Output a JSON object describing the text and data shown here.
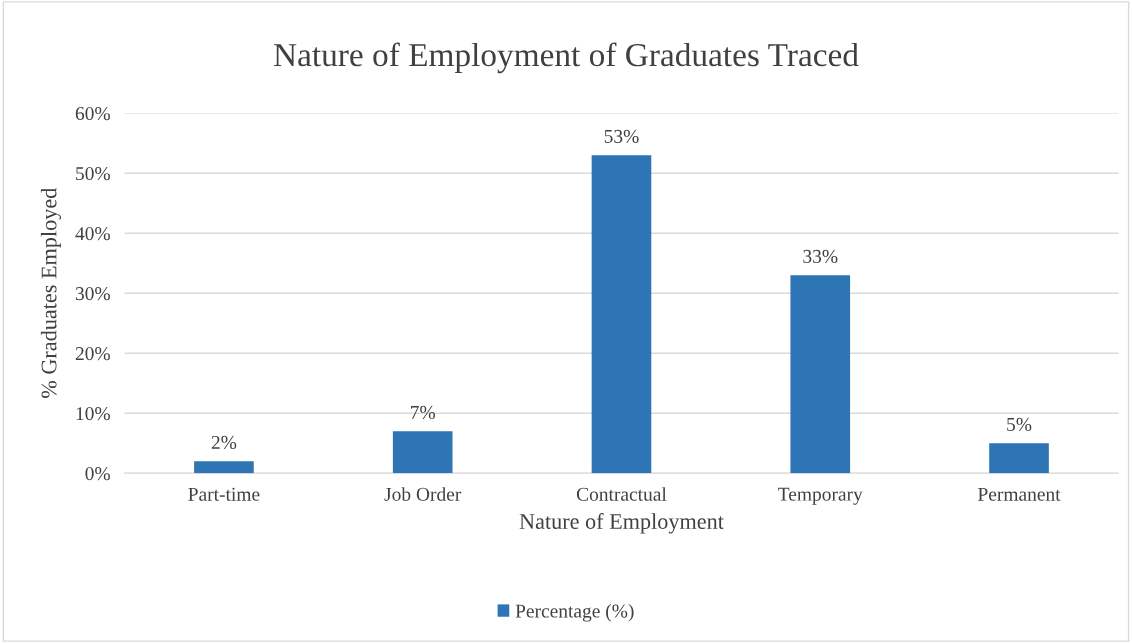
{
  "chart_data": {
    "type": "bar",
    "title": "Nature of Employment of Graduates Traced",
    "xlabel": "Nature of Employment",
    "ylabel": "% Graduates Employed",
    "categories": [
      "Part-time",
      "Job Order",
      "Contractual",
      "Temporary",
      "Permanent"
    ],
    "series": [
      {
        "name": "Percentage (%)",
        "color": "#2e75b6",
        "values": [
          2,
          7,
          53,
          33,
          5
        ],
        "value_labels": [
          "2%",
          "7%",
          "53%",
          "33%",
          "5%"
        ]
      }
    ],
    "ylim": [
      0,
      60
    ],
    "yticks": [
      {
        "value": 0,
        "label": "0%"
      },
      {
        "value": 10,
        "label": "10%"
      },
      {
        "value": 20,
        "label": "20%"
      },
      {
        "value": 30,
        "label": "30%"
      },
      {
        "value": 40,
        "label": "40%"
      },
      {
        "value": 50,
        "label": "50%"
      },
      {
        "value": 60,
        "label": "60%"
      }
    ],
    "grid": "y",
    "legend": "bottom"
  }
}
